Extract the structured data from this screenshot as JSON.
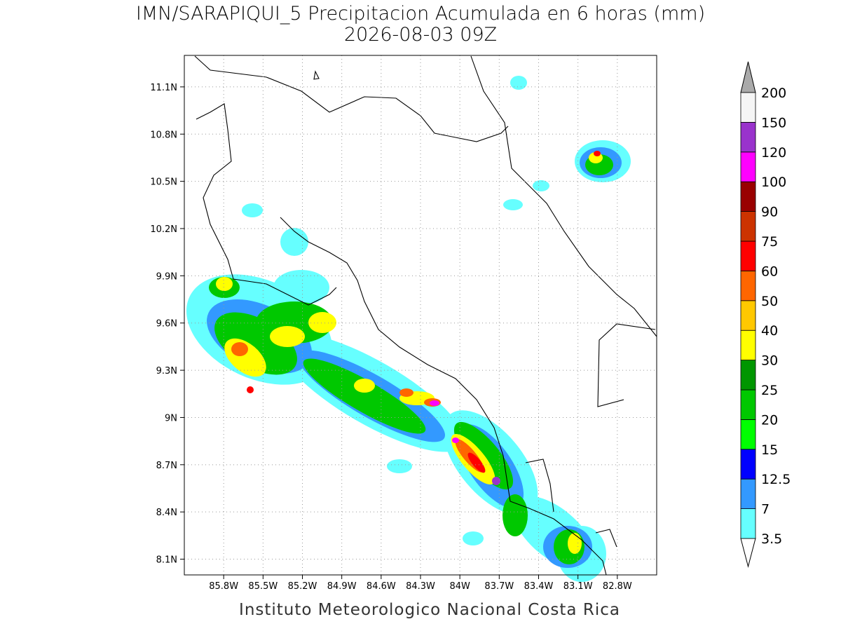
{
  "title": "IMN/SARAPIQUI_5 Precipitacion Acumulada en 6 horas (mm)",
  "subtitle": "2026-08-03 09Z",
  "footer": "Instituto Meteorologico Nacional Costa Rica",
  "map": {
    "lon_range": [
      -86.1,
      -82.5
    ],
    "lat_range": [
      8.0,
      11.3
    ],
    "grid": true,
    "xticks": [
      {
        "value": -85.8,
        "label": "85.8W"
      },
      {
        "value": -85.5,
        "label": "85.5W"
      },
      {
        "value": -85.2,
        "label": "85.2W"
      },
      {
        "value": -84.9,
        "label": "84.9W"
      },
      {
        "value": -84.6,
        "label": "84.6W"
      },
      {
        "value": -84.3,
        "label": "84.3W"
      },
      {
        "value": -84,
        "label": "84W"
      },
      {
        "value": -83.7,
        "label": "83.7W"
      },
      {
        "value": -83.4,
        "label": "83.4W"
      },
      {
        "value": -83.1,
        "label": "83.1W"
      },
      {
        "value": -82.8,
        "label": "82.8W"
      }
    ],
    "yticks": [
      {
        "value": 8.1,
        "label": "8.1N"
      },
      {
        "value": 8.4,
        "label": "8.4N"
      },
      {
        "value": 8.7,
        "label": "8.7N"
      },
      {
        "value": 9,
        "label": "9N"
      },
      {
        "value": 9.3,
        "label": "9.3N"
      },
      {
        "value": 9.6,
        "label": "9.6N"
      },
      {
        "value": 9.9,
        "label": "9.9N"
      },
      {
        "value": 10.2,
        "label": "10.2N"
      },
      {
        "value": 10.5,
        "label": "10.5N"
      },
      {
        "value": 10.8,
        "label": "10.8N"
      },
      {
        "value": 11.1,
        "label": "11.1N"
      }
    ]
  },
  "colorbar": {
    "levels": [
      3.5,
      7,
      12.5,
      15,
      20,
      25,
      30,
      40,
      50,
      60,
      75,
      90,
      100,
      120,
      150,
      200
    ],
    "colors": [
      "#66ffff",
      "#3399ff",
      "#0000ff",
      "#00ff00",
      "#00c800",
      "#009600",
      "#ffff00",
      "#ffc800",
      "#ff6600",
      "#ff0000",
      "#cc3300",
      "#990000",
      "#ff00ff",
      "#9933cc",
      "#f5f5f5"
    ],
    "under_color": "#ffffff",
    "over_color": "#aaaaaa"
  }
}
